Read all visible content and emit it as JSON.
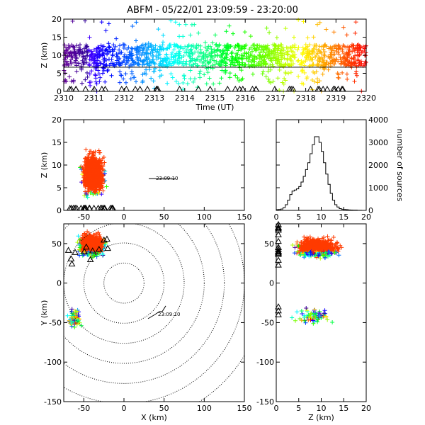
{
  "title": "ABFM - 05/22/01 23:09:59 - 23:20:00",
  "chart_data": [
    {
      "panel": "time-height",
      "type": "scatter",
      "xlabel": "Time (UT)",
      "ylabel": "Z (km)",
      "xticks": [
        "2310",
        "2311",
        "2312",
        "2313",
        "2314",
        "2315",
        "2316",
        "2317",
        "2318",
        "2319",
        "2320"
      ],
      "yticks": [
        "0",
        "5",
        "10",
        "15",
        "20"
      ],
      "ylim": [
        0,
        20
      ],
      "xlim": [
        2310,
        2320
      ],
      "reference_line_z_km": 6.7,
      "color_scale": "time (purple to red)",
      "z_core_km": [
        7,
        13
      ],
      "z_extremes_km": [
        0,
        20
      ],
      "marker": "+"
    },
    {
      "panel": "x-z",
      "type": "scatter",
      "xlabel": "",
      "ylabel": "Z (km)",
      "xticks": [
        "-50",
        "0",
        "50",
        "100",
        "150"
      ],
      "yticks": [
        "0",
        "5",
        "10",
        "15",
        "20"
      ],
      "xlim": [
        -75,
        150
      ],
      "ylim": [
        0,
        20
      ],
      "annotation": "23:09:10",
      "cluster_x_km": [
        -65,
        10
      ],
      "cluster_z_km": [
        0,
        20
      ],
      "marker": "+"
    },
    {
      "panel": "histogram",
      "type": "bar",
      "ylabel": "number of sources",
      "xticks": [
        "0",
        "5",
        "10",
        "15",
        "20"
      ],
      "yticks": [
        "0",
        "1000",
        "2000",
        "3000",
        "4000"
      ],
      "xlim": [
        0,
        20
      ],
      "ylim": [
        0,
        4000
      ],
      "bin_width_km": 0.5,
      "bin_centers_km": [
        0.25,
        0.75,
        1.25,
        1.75,
        2.25,
        2.75,
        3.25,
        3.75,
        4.25,
        4.75,
        5.25,
        5.75,
        6.25,
        6.75,
        7.25,
        7.75,
        8.25,
        8.75,
        9.25,
        9.75,
        10.25,
        10.75,
        11.25,
        11.75,
        12.25,
        12.75,
        13.25,
        13.75,
        14.25,
        14.75,
        15.25,
        15.75,
        16.25,
        16.75,
        17.25,
        17.75,
        18.25,
        18.75,
        19.25,
        19.75
      ],
      "values": [
        30,
        40,
        60,
        120,
        250,
        450,
        700,
        850,
        900,
        950,
        1050,
        1250,
        1500,
        1800,
        2100,
        2500,
        2900,
        3250,
        3250,
        3000,
        2600,
        2100,
        1600,
        1150,
        750,
        450,
        250,
        150,
        80,
        50,
        40,
        30,
        20,
        15,
        10,
        10,
        5,
        5,
        0,
        0
      ]
    },
    {
      "panel": "x-y",
      "type": "scatter",
      "xlabel": "X (km)",
      "ylabel": "Y (km)",
      "xticks": [
        "-50",
        "0",
        "50",
        "100",
        "150"
      ],
      "yticks": [
        "-150",
        "-100",
        "-50",
        "0",
        "50"
      ],
      "xlim": [
        -75,
        150
      ],
      "ylim": [
        -150,
        75
      ],
      "range_rings_km": [
        25,
        50,
        75,
        100,
        125,
        150,
        175
      ],
      "annotation": "23:09:10",
      "north_cluster_x_km": [
        -75,
        5
      ],
      "north_cluster_y_km": [
        20,
        75
      ],
      "south_cluster_x_km": [
        -75,
        -45
      ],
      "south_cluster_y_km": [
        -65,
        -25
      ],
      "marker": "+"
    },
    {
      "panel": "z-y",
      "type": "scatter",
      "xlabel": "Z (km)",
      "ylabel": "",
      "xticks": [
        "0",
        "5",
        "10",
        "15",
        "20"
      ],
      "yticks": [
        "-150",
        "-100",
        "-50",
        "0",
        "50"
      ],
      "xlim": [
        0,
        20
      ],
      "ylim": [
        -150,
        75
      ],
      "marker": "+"
    }
  ]
}
